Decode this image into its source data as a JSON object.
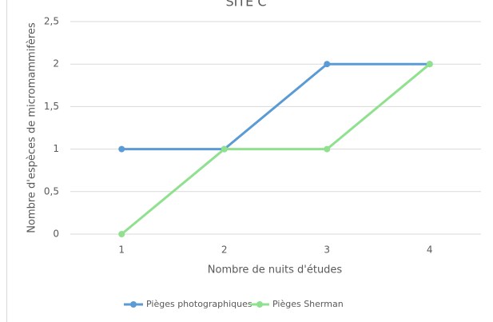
{
  "chart_data": {
    "type": "line",
    "title": "SITE C",
    "x_label": "Nombre de nuits d'études",
    "y_label": "Nombre d'espèces de micromammifères",
    "categories": [
      "1",
      "2",
      "3",
      "4"
    ],
    "series": [
      {
        "name": "Pièges photographiques",
        "color": "#5b9bd5",
        "values": [
          1,
          1,
          2,
          2
        ]
      },
      {
        "name": "Pièges Sherman",
        "color": "#8fe08f",
        "values": [
          0,
          1,
          1,
          2
        ]
      }
    ],
    "ylim": [
      0,
      2.5
    ],
    "yticks": [
      0,
      {
        "value": 0.5,
        "label": "0,5"
      },
      1,
      {
        "value": 1.5,
        "label": "1,5"
      },
      2,
      {
        "value": 2.5,
        "label": "2,5"
      }
    ],
    "grid": true,
    "legend": "bottom"
  }
}
